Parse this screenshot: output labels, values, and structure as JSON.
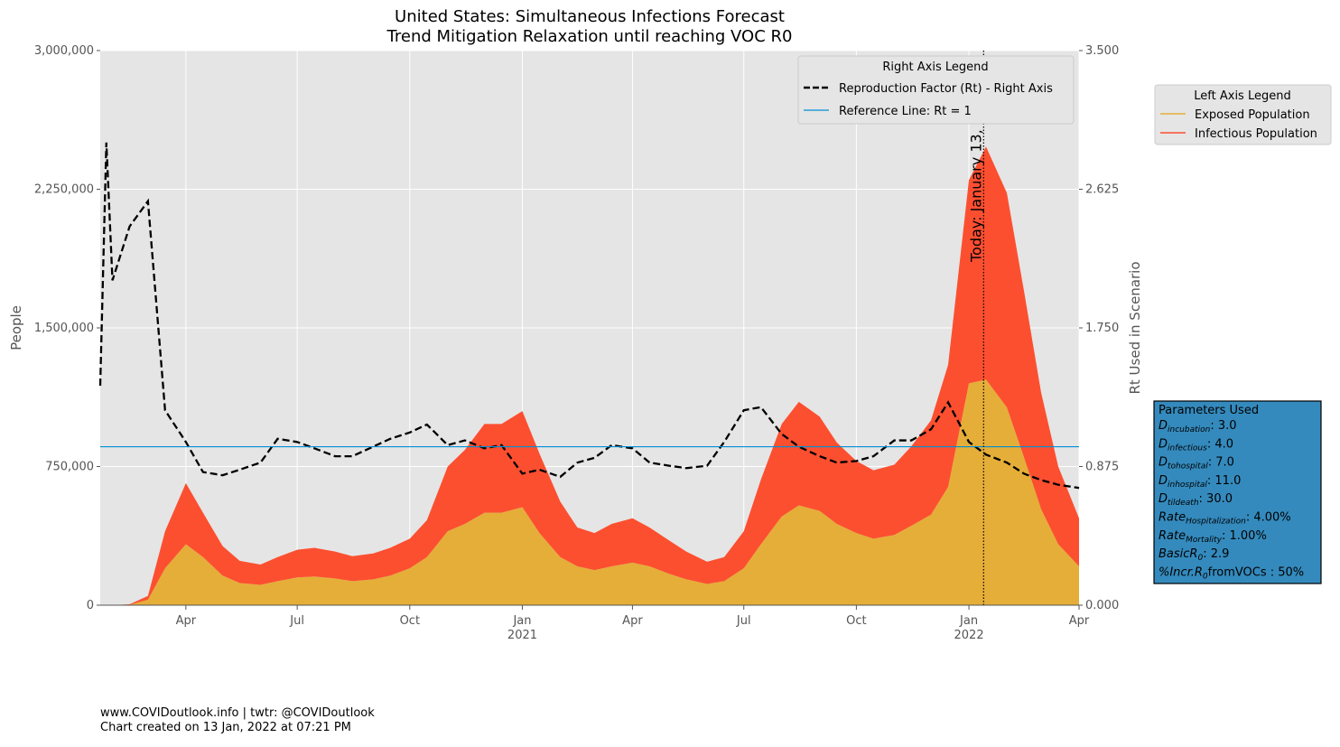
{
  "chart_data": {
    "type": "stacked_area",
    "title": "United States: Simultaneous Infections Forecast",
    "subtitle": "Trend Mitigation Relaxation until reaching VOC R0",
    "ylabel": "People",
    "y2label": "Rt Used in Scenario",
    "x": [
      "2020-01-22",
      "2020-01-27",
      "2020-02-01",
      "2020-02-15",
      "2020-03-01",
      "2020-03-15",
      "2020-04-01",
      "2020-04-15",
      "2020-05-01",
      "2020-05-15",
      "2020-06-01",
      "2020-06-15",
      "2020-07-01",
      "2020-07-15",
      "2020-08-01",
      "2020-08-15",
      "2020-09-01",
      "2020-09-15",
      "2020-10-01",
      "2020-10-15",
      "2020-11-01",
      "2020-11-15",
      "2020-12-01",
      "2020-12-15",
      "2021-01-01",
      "2021-01-15",
      "2021-02-01",
      "2021-02-15",
      "2021-03-01",
      "2021-03-15",
      "2021-04-01",
      "2021-04-15",
      "2021-05-01",
      "2021-05-15",
      "2021-06-01",
      "2021-06-15",
      "2021-07-01",
      "2021-07-15",
      "2021-08-01",
      "2021-08-15",
      "2021-09-01",
      "2021-09-15",
      "2021-10-01",
      "2021-10-15",
      "2021-11-01",
      "2021-11-15",
      "2021-12-01",
      "2021-12-15",
      "2022-01-01",
      "2022-01-15",
      "2022-02-01",
      "2022-02-15",
      "2022-03-01",
      "2022-03-15",
      "2022-04-01"
    ],
    "series": [
      {
        "name": "Exposed Population",
        "color": "#E5AE38",
        "values": [
          0,
          0,
          0,
          2000,
          30000,
          200000,
          330000,
          260000,
          160000,
          120000,
          110000,
          130000,
          150000,
          155000,
          145000,
          130000,
          140000,
          160000,
          200000,
          260000,
          400000,
          440000,
          500000,
          500000,
          530000,
          390000,
          260000,
          210000,
          190000,
          210000,
          230000,
          210000,
          170000,
          140000,
          115000,
          130000,
          200000,
          330000,
          480000,
          540000,
          510000,
          440000,
          390000,
          360000,
          380000,
          430000,
          490000,
          640000,
          1200000,
          1220000,
          1070000,
          800000,
          520000,
          330000,
          210000
        ]
      },
      {
        "name": "Infectious Population",
        "color": "#FC4F30",
        "values": [
          0,
          0,
          0,
          3000,
          20000,
          200000,
          330000,
          240000,
          160000,
          120000,
          110000,
          130000,
          150000,
          155000,
          145000,
          135000,
          140000,
          150000,
          160000,
          200000,
          350000,
          400000,
          480000,
          480000,
          520000,
          430000,
          300000,
          210000,
          200000,
          230000,
          240000,
          210000,
          180000,
          150000,
          120000,
          130000,
          200000,
          350000,
          500000,
          560000,
          510000,
          440000,
          390000,
          370000,
          380000,
          430000,
          510000,
          660000,
          1100000,
          1260000,
          1160000,
          900000,
          630000,
          420000,
          260000
        ]
      },
      {
        "name": "Reproduction Factor (Rt) - Right Axis",
        "color": "#000000",
        "axis": "y2",
        "dashed": true,
        "values": [
          1.385,
          2.92,
          2.05,
          2.39,
          2.55,
          1.23,
          1.03,
          0.84,
          0.82,
          0.855,
          0.9,
          1.05,
          1.03,
          0.99,
          0.94,
          0.94,
          1.0,
          1.05,
          1.09,
          1.14,
          1.01,
          1.04,
          0.99,
          1.01,
          0.83,
          0.855,
          0.81,
          0.9,
          0.93,
          1.01,
          0.99,
          0.9,
          0.88,
          0.865,
          0.88,
          1.03,
          1.23,
          1.25,
          1.08,
          1.0,
          0.94,
          0.9,
          0.91,
          0.94,
          1.04,
          1.04,
          1.11,
          1.28,
          1.03,
          0.95,
          0.9,
          0.83,
          0.79,
          0.76,
          0.74
        ]
      }
    ],
    "reference_line": {
      "name": "Reference Line: Rt = 1",
      "value": 1,
      "axis": "y2",
      "color": "#008FD5"
    },
    "today": {
      "x": "2022-01-13",
      "label": "Today: January 13, 2022"
    },
    "xlim": [
      "2020-01-22",
      "2022-04-01"
    ],
    "xticks": [
      {
        "value": "2020-04-01",
        "label": "Apr"
      },
      {
        "value": "2020-07-01",
        "label": "Jul"
      },
      {
        "value": "2020-10-01",
        "label": "Oct"
      },
      {
        "value": "2021-01-01",
        "label": "Jan\n2021"
      },
      {
        "value": "2021-04-01",
        "label": "Apr"
      },
      {
        "value": "2021-07-01",
        "label": "Jul"
      },
      {
        "value": "2021-10-01",
        "label": "Oct"
      },
      {
        "value": "2022-01-01",
        "label": "Jan\n2022"
      },
      {
        "value": "2022-04-01",
        "label": "Apr"
      }
    ],
    "ylim": [
      0,
      3000000
    ],
    "yticks": [
      0,
      {
        "value": 750000,
        "label": "750,000"
      },
      {
        "value": 1500000,
        "label": "1,500,000"
      },
      {
        "value": 2250000,
        "label": "2,250,000"
      },
      {
        "value": 3000000,
        "label": "3,000,000"
      }
    ],
    "y2lim": [
      0,
      3.5
    ],
    "y2ticks": [
      {
        "value": 0,
        "label": "0.000"
      },
      {
        "value": 0.875,
        "label": "0.875"
      },
      {
        "value": 1.75,
        "label": "1.750"
      },
      {
        "value": 2.625,
        "label": "2.625"
      },
      {
        "value": 3.5,
        "label": "3.500"
      }
    ],
    "grid": true,
    "right_legend_title": "Right Axis Legend",
    "left_legend_title": "Left Axis Legend",
    "parameters_title": "Parameters Used",
    "parameters": [
      {
        "main": "D",
        "sub": "incubation",
        "value": ": 3.0"
      },
      {
        "main": "D",
        "sub": "infectious",
        "value": ": 4.0"
      },
      {
        "main": "D",
        "sub": "tohospital",
        "value": ": 7.0"
      },
      {
        "main": "D",
        "sub": "inhospital",
        "value": ": 11.0"
      },
      {
        "main": "D",
        "sub": "tildeath",
        "value": ": 30.0"
      },
      {
        "main": "Rate",
        "sub": "Hospitalization",
        "value": ": 4.00%"
      },
      {
        "main": "Rate",
        "sub": "Mortality",
        "value": ": 1.00%"
      },
      {
        "main": "BasicR",
        "sub": "0",
        "value": ": 2.9"
      },
      {
        "main": "%Incr.R",
        "sub": "0",
        "value": "fromVOCs : 50%"
      }
    ],
    "footer": [
      "www.COVIDoutlook.info | twtr: @COVIDoutlook",
      "Chart created on 13 Jan, 2022 at 07:21 PM"
    ]
  }
}
